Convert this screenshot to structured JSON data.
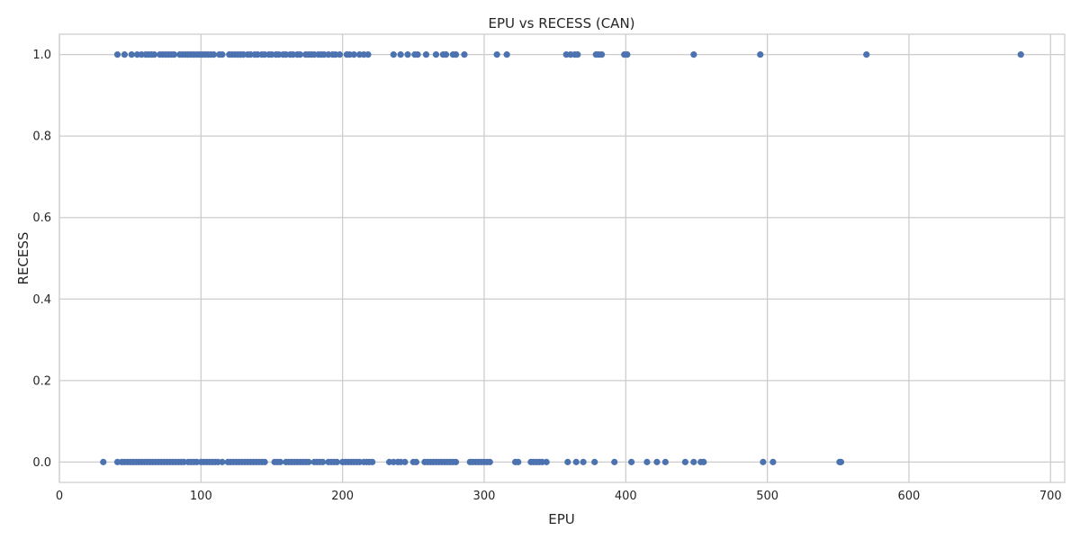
{
  "chart_data": {
    "type": "scatter",
    "title": "EPU vs RECESS (CAN)",
    "xlabel": "EPU",
    "ylabel": "RECESS",
    "xlim": [
      0,
      710
    ],
    "ylim": [
      -0.05,
      1.05
    ],
    "xticks": [
      "0",
      "100",
      "200",
      "300",
      "400",
      "500",
      "600",
      "700"
    ],
    "yticks": [
      "0.0",
      "0.2",
      "0.4",
      "0.6",
      "0.8",
      "1.0"
    ],
    "grid": true,
    "legend": "none",
    "marker_color": "#4c72b0",
    "series": [
      {
        "x": [
          41,
          46,
          51,
          55,
          58,
          61,
          63,
          65,
          67,
          71,
          73,
          75,
          77,
          79,
          81,
          85,
          87,
          89,
          91,
          93,
          95,
          97,
          99,
          101,
          103,
          105,
          107,
          109,
          113,
          115,
          120,
          122,
          124,
          126,
          128,
          130,
          133,
          135,
          138,
          140,
          143,
          145,
          148,
          150,
          153,
          155,
          158,
          160,
          163,
          165,
          168,
          170,
          174,
          176,
          178,
          180,
          183,
          185,
          187,
          190,
          193,
          195,
          198,
          203,
          205,
          208,
          212,
          215,
          218,
          236,
          241,
          246,
          251,
          253,
          259,
          266,
          271,
          273,
          278,
          280,
          286,
          309,
          316,
          358,
          361,
          364,
          366,
          379,
          381,
          383,
          399,
          401,
          448,
          495,
          570,
          679
        ],
        "y": [
          1,
          1,
          1,
          1,
          1,
          1,
          1,
          1,
          1,
          1,
          1,
          1,
          1,
          1,
          1,
          1,
          1,
          1,
          1,
          1,
          1,
          1,
          1,
          1,
          1,
          1,
          1,
          1,
          1,
          1,
          1,
          1,
          1,
          1,
          1,
          1,
          1,
          1,
          1,
          1,
          1,
          1,
          1,
          1,
          1,
          1,
          1,
          1,
          1,
          1,
          1,
          1,
          1,
          1,
          1,
          1,
          1,
          1,
          1,
          1,
          1,
          1,
          1,
          1,
          1,
          1,
          1,
          1,
          1,
          1,
          1,
          1,
          1,
          1,
          1,
          1,
          1,
          1,
          1,
          1,
          1,
          1,
          1,
          1,
          1,
          1,
          1,
          1,
          1,
          1,
          1,
          1,
          1,
          1,
          1,
          1
        ]
      },
      {
        "x": [
          31,
          41,
          44,
          46,
          48,
          50,
          52,
          54,
          56,
          58,
          60,
          62,
          64,
          66,
          68,
          70,
          72,
          74,
          76,
          78,
          80,
          82,
          84,
          86,
          88,
          91,
          93,
          95,
          97,
          100,
          102,
          104,
          106,
          108,
          110,
          112,
          115,
          119,
          121,
          123,
          125,
          127,
          129,
          131,
          133,
          135,
          137,
          139,
          141,
          143,
          145,
          152,
          154,
          156,
          160,
          162,
          164,
          166,
          168,
          170,
          172,
          174,
          176,
          180,
          182,
          184,
          186,
          190,
          192,
          194,
          196,
          200,
          202,
          204,
          206,
          208,
          210,
          212,
          215,
          217,
          219,
          221,
          233,
          236,
          239,
          241,
          244,
          250,
          252,
          258,
          260,
          262,
          264,
          266,
          268,
          270,
          272,
          274,
          276,
          278,
          280,
          290,
          292,
          294,
          296,
          298,
          300,
          302,
          304,
          322,
          324,
          333,
          335,
          337,
          339,
          341,
          344,
          359,
          365,
          370,
          378,
          392,
          404,
          415,
          422,
          428,
          442,
          448,
          453,
          455,
          497,
          504,
          551,
          552
        ],
        "y": [
          0,
          0,
          0,
          0,
          0,
          0,
          0,
          0,
          0,
          0,
          0,
          0,
          0,
          0,
          0,
          0,
          0,
          0,
          0,
          0,
          0,
          0,
          0,
          0,
          0,
          0,
          0,
          0,
          0,
          0,
          0,
          0,
          0,
          0,
          0,
          0,
          0,
          0,
          0,
          0,
          0,
          0,
          0,
          0,
          0,
          0,
          0,
          0,
          0,
          0,
          0,
          0,
          0,
          0,
          0,
          0,
          0,
          0,
          0,
          0,
          0,
          0,
          0,
          0,
          0,
          0,
          0,
          0,
          0,
          0,
          0,
          0,
          0,
          0,
          0,
          0,
          0,
          0,
          0,
          0,
          0,
          0,
          0,
          0,
          0,
          0,
          0,
          0,
          0,
          0,
          0,
          0,
          0,
          0,
          0,
          0,
          0,
          0,
          0,
          0,
          0,
          0,
          0,
          0,
          0,
          0,
          0,
          0,
          0,
          0,
          0,
          0,
          0,
          0,
          0,
          0,
          0,
          0,
          0,
          0,
          0,
          0,
          0,
          0,
          0,
          0,
          0,
          0,
          0,
          0,
          0,
          0,
          0,
          0
        ]
      }
    ]
  }
}
